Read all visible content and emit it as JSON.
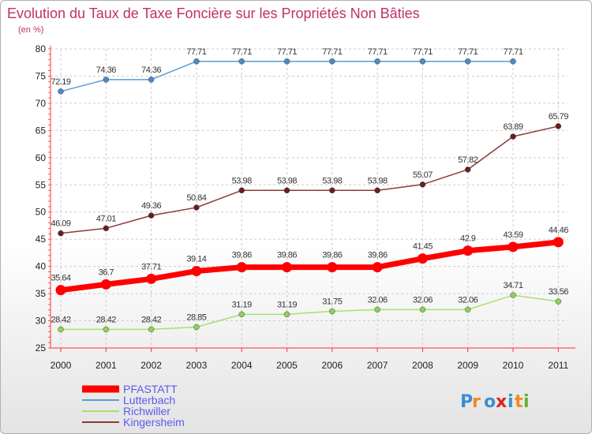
{
  "chart_data": {
    "type": "line",
    "title": "Evolution du Taux de Taxe Foncière sur les Propriétés Non Bâties",
    "subtitle": "(en %)",
    "xlabel": "",
    "ylabel": "",
    "ylim": [
      25,
      80
    ],
    "yticks": [
      "25",
      "30",
      "35",
      "40",
      "45",
      "50",
      "55",
      "60",
      "65",
      "70",
      "75",
      "80"
    ],
    "categories": [
      "2000",
      "2001",
      "2002",
      "2003",
      "2004",
      "2005",
      "2006",
      "2007",
      "2008",
      "2009",
      "2010",
      "2011"
    ],
    "grid": true,
    "legend_position": "bottom-left",
    "series": [
      {
        "name": "Lutterbach",
        "color": "#5b9bd5",
        "marker": "#4a8ac8",
        "values": [
          72.19,
          74.36,
          74.36,
          77.71,
          77.71,
          77.71,
          77.71,
          77.71,
          77.71,
          77.71,
          77.71,
          null
        ],
        "labels": [
          "72.19",
          "74.36",
          "74.36",
          "77.71",
          "77.71",
          "77.71",
          "77.71",
          "77.71",
          "77.71",
          "77.71",
          "77.71",
          ""
        ]
      },
      {
        "name": "Kingersheim",
        "color": "#8b3a3a",
        "marker": "#6b1e1e",
        "values": [
          46.09,
          47.01,
          49.36,
          50.84,
          53.98,
          53.98,
          53.98,
          53.98,
          55.07,
          57.82,
          63.89,
          65.79
        ],
        "labels": [
          "46.09",
          "47.01",
          "49.36",
          "50.84",
          "53.98",
          "53.98",
          "53.98",
          "53.98",
          "55.07",
          "57.82",
          "63.89",
          "65.79"
        ]
      },
      {
        "name": "PFASTATT",
        "color": "#ff0000",
        "marker": "#ff0000",
        "values": [
          35.64,
          36.7,
          37.71,
          39.14,
          39.86,
          39.86,
          39.86,
          39.86,
          41.45,
          42.9,
          43.59,
          44.46
        ],
        "labels": [
          "35.64",
          "36.7",
          "37.71",
          "39.14",
          "39.86",
          "39.86",
          "39.86",
          "39.86",
          "41.45",
          "42.9",
          "43.59",
          "44.46"
        ]
      },
      {
        "name": "Richwiller",
        "color": "#a8e070",
        "marker": "#8fd058",
        "values": [
          28.42,
          28.42,
          28.42,
          28.85,
          31.19,
          31.19,
          31.75,
          32.06,
          32.06,
          32.06,
          34.71,
          33.56
        ],
        "labels": [
          "28.42",
          "28.42",
          "28.42",
          "28.85",
          "31.19",
          "31.19",
          "31.75",
          "32.06",
          "32.06",
          "32.06",
          "34.71",
          "33.56"
        ]
      }
    ],
    "legend": [
      "PFASTATT",
      "Lutterbach",
      "Richwiller",
      "Kingersheim"
    ]
  },
  "branding": {
    "logo_letters": [
      "P",
      "r",
      "o",
      "x",
      "i",
      "t",
      "i"
    ],
    "logo_colors": [
      "#3a8fd0",
      "#f08a20",
      "#3a8fd0",
      "#e02020",
      "#3a8fd0",
      "#f08a20",
      "#60b030"
    ]
  }
}
